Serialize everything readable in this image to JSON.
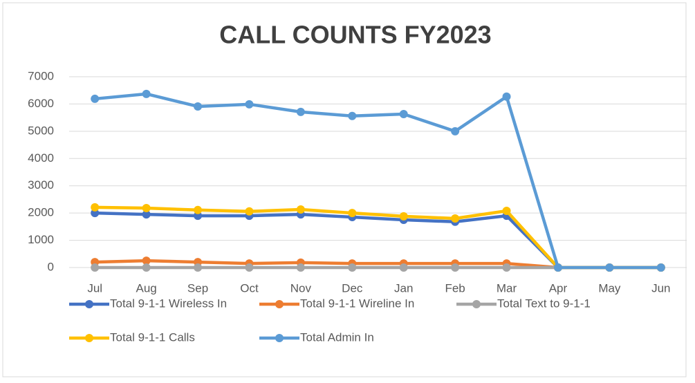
{
  "chart_data": {
    "type": "line",
    "title": "CALL COUNTS FY2023",
    "categories": [
      "Jul",
      "Aug",
      "Sep",
      "Oct",
      "Nov",
      "Dec",
      "Jan",
      "Feb",
      "Mar",
      "Apr",
      "May",
      "Jun"
    ],
    "series": [
      {
        "name": "Total 9-1-1 Wireless In",
        "color": "#4472c4",
        "values": [
          2000,
          1950,
          1900,
          1900,
          1950,
          1850,
          1750,
          1680,
          1900,
          0,
          0,
          0
        ]
      },
      {
        "name": "Total 9-1-1 Wireline In",
        "color": "#ed7d31",
        "values": [
          200,
          250,
          200,
          150,
          180,
          150,
          150,
          150,
          150,
          0,
          0,
          0
        ]
      },
      {
        "name": "Total Text to 9-1-1",
        "color": "#a5a5a5",
        "values": [
          0,
          0,
          0,
          0,
          0,
          0,
          0,
          0,
          0,
          0,
          0,
          0
        ]
      },
      {
        "name": "Total 9-1-1 Calls",
        "color": "#ffc000",
        "values": [
          2210,
          2180,
          2110,
          2060,
          2130,
          2000,
          1880,
          1800,
          2080,
          0,
          0,
          0
        ]
      },
      {
        "name": "Total Admin In",
        "color": "#5b9bd5",
        "values": [
          6190,
          6370,
          5910,
          5990,
          5710,
          5560,
          5630,
          5000,
          6270,
          0,
          0,
          0
        ]
      }
    ],
    "ylim": [
      0,
      7000
    ],
    "yticks": [
      0,
      1000,
      2000,
      3000,
      4000,
      5000,
      6000,
      7000
    ],
    "grid": true
  }
}
